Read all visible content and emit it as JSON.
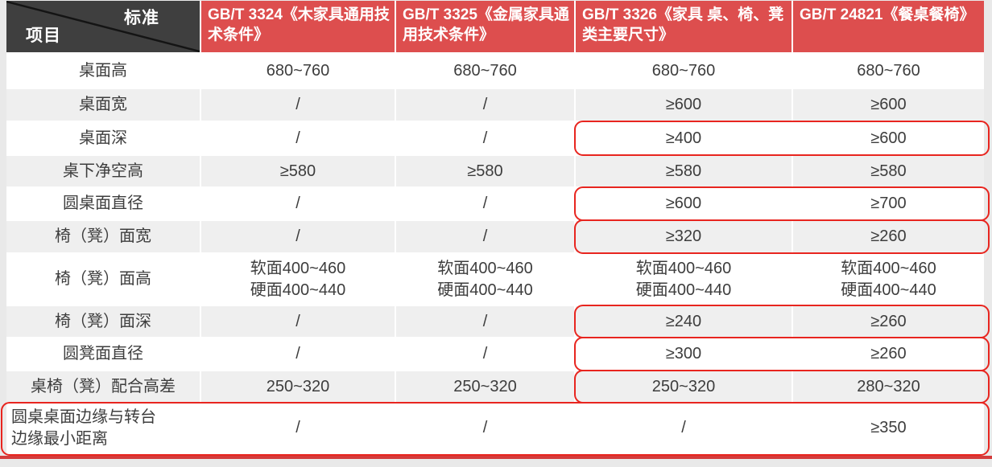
{
  "colors": {
    "page_bg": "#e9e9e9",
    "gap_white": "#ffffff",
    "header_red": "#dd4e4e",
    "corner_dark": "#3f3f3f",
    "row_alt_gray": "#efefef",
    "text_dark": "#3d3d3d",
    "outline_red": "#e8251f",
    "bottom_bar_red": "#d43c3c"
  },
  "table": {
    "corner": {
      "top_right": "标准",
      "bottom_left": "项目"
    },
    "columns": [
      "GB/T 3324《木家具通用技术条件》",
      "GB/T 3325《金属家具通用技术条件》",
      "GB/T 3326《家具 桌、椅、凳类主要尺寸》",
      "GB/T 24821《餐桌餐椅》"
    ],
    "rows": [
      {
        "label": "桌面高",
        "values": [
          "680~760",
          "680~760",
          "680~760",
          "680~760"
        ],
        "outline": "none"
      },
      {
        "label": "桌面宽",
        "values": [
          "/",
          "/",
          "≥600",
          "≥600"
        ],
        "outline": "none"
      },
      {
        "label": "桌面深",
        "values": [
          "/",
          "/",
          "≥400",
          "≥600"
        ],
        "outline": "right"
      },
      {
        "label": "桌下净空高",
        "values": [
          "≥580",
          "≥580",
          "≥580",
          "≥580"
        ],
        "outline": "none"
      },
      {
        "label": "圆桌面直径",
        "values": [
          "/",
          "/",
          "≥600",
          "≥700"
        ],
        "outline": "right"
      },
      {
        "label": "椅（凳）面宽",
        "values": [
          "/",
          "/",
          "≥320",
          "≥260"
        ],
        "outline": "right"
      },
      {
        "label": "椅（凳）面高",
        "values": [
          "软面400~460\n硬面400~440",
          "软面400~460\n硬面400~440",
          "软面400~460\n硬面400~440",
          "软面400~460\n硬面400~440"
        ],
        "outline": "none"
      },
      {
        "label": "椅（凳）面深",
        "values": [
          "/",
          "/",
          "≥240",
          "≥260"
        ],
        "outline": "right"
      },
      {
        "label": "圆凳面直径",
        "values": [
          "/",
          "/",
          "≥300",
          "≥260"
        ],
        "outline": "right"
      },
      {
        "label": "桌椅（凳）配合高差",
        "values": [
          "250~320",
          "250~320",
          "250~320",
          "280~320"
        ],
        "outline": "right"
      },
      {
        "label": "圆桌桌面边缘与转台\n边缘最小距离",
        "values": [
          "/",
          "/",
          "/",
          "≥350"
        ],
        "outline": "full",
        "align": "left"
      }
    ]
  }
}
